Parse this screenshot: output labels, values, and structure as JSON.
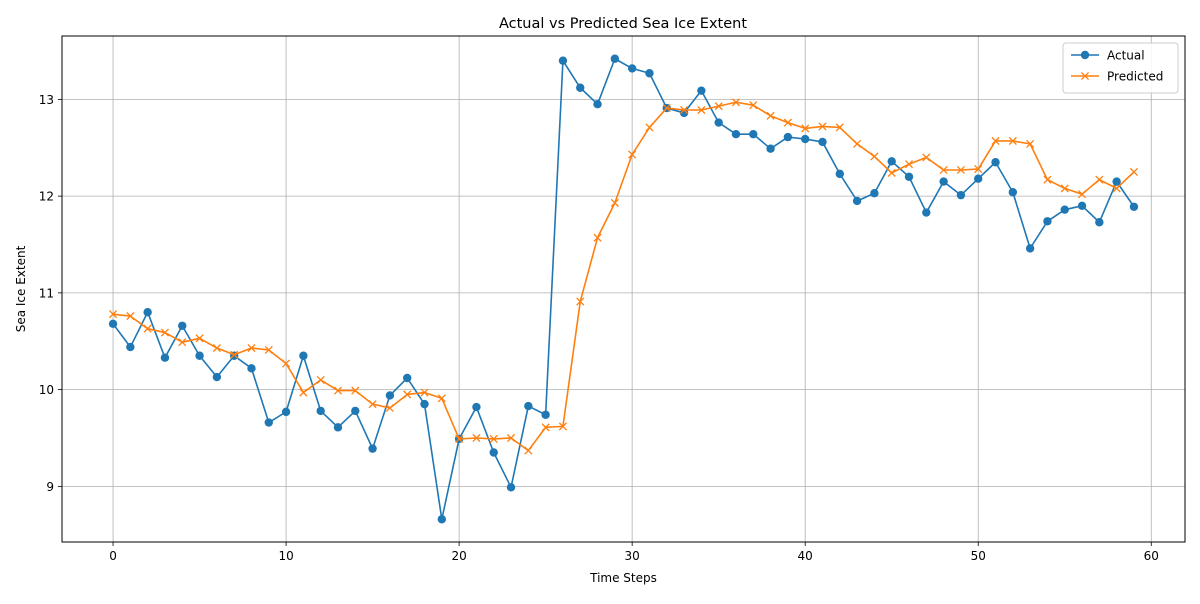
{
  "chart_data": {
    "type": "line",
    "title": "Actual vs Predicted Sea Ice Extent",
    "xlabel": "Time Steps",
    "ylabel": "Sea Ice Extent",
    "xlim": [
      -2.95,
      61.95
    ],
    "ylim": [
      8.425,
      13.655
    ],
    "x_ticks": [
      0,
      10,
      20,
      30,
      40,
      50,
      60
    ],
    "y_ticks": [
      9,
      10,
      11,
      12,
      13
    ],
    "grid": true,
    "legend_position": "top-right",
    "x": [
      0,
      1,
      2,
      3,
      4,
      5,
      6,
      7,
      8,
      9,
      10,
      11,
      12,
      13,
      14,
      15,
      16,
      17,
      18,
      19,
      20,
      21,
      22,
      23,
      24,
      25,
      26,
      27,
      28,
      29,
      30,
      31,
      32,
      33,
      34,
      35,
      36,
      37,
      38,
      39,
      40,
      41,
      42,
      43,
      44,
      45,
      46,
      47,
      48,
      49,
      50,
      51,
      52,
      53,
      54,
      55,
      56,
      57,
      58,
      59
    ],
    "series": [
      {
        "name": "Actual",
        "color": "#1f77b4",
        "marker": "circle",
        "values": [
          10.68,
          10.44,
          10.8,
          10.33,
          10.66,
          10.35,
          10.13,
          10.35,
          10.22,
          9.66,
          9.77,
          10.35,
          9.78,
          9.61,
          9.78,
          9.39,
          9.94,
          10.12,
          9.85,
          8.66,
          9.49,
          9.82,
          9.35,
          8.99,
          9.83,
          9.74,
          13.4,
          13.12,
          12.95,
          13.42,
          13.32,
          13.27,
          12.91,
          12.86,
          13.09,
          12.76,
          12.64,
          12.64,
          12.49,
          12.61,
          12.59,
          12.56,
          12.23,
          11.95,
          12.03,
          12.36,
          12.2,
          11.83,
          12.15,
          12.01,
          12.18,
          12.35,
          12.04,
          11.46,
          11.74,
          11.86,
          11.9,
          11.73,
          12.15,
          11.89
        ]
      },
      {
        "name": "Predicted",
        "color": "#ff7f0e",
        "marker": "x",
        "values": [
          10.78,
          10.76,
          10.63,
          10.59,
          10.49,
          10.53,
          10.43,
          10.36,
          10.43,
          10.41,
          10.27,
          9.97,
          10.1,
          9.99,
          9.99,
          9.85,
          9.81,
          9.95,
          9.97,
          9.91,
          9.49,
          9.5,
          9.49,
          9.5,
          9.37,
          9.61,
          9.62,
          10.91,
          11.57,
          11.93,
          12.43,
          12.71,
          12.91,
          12.89,
          12.89,
          12.93,
          12.97,
          12.94,
          12.83,
          12.76,
          12.7,
          12.72,
          12.71,
          12.54,
          12.41,
          12.24,
          12.33,
          12.4,
          12.27,
          12.27,
          12.28,
          12.57,
          12.57,
          12.54,
          12.17,
          12.08,
          12.02,
          12.17,
          12.08,
          12.25
        ]
      }
    ]
  }
}
